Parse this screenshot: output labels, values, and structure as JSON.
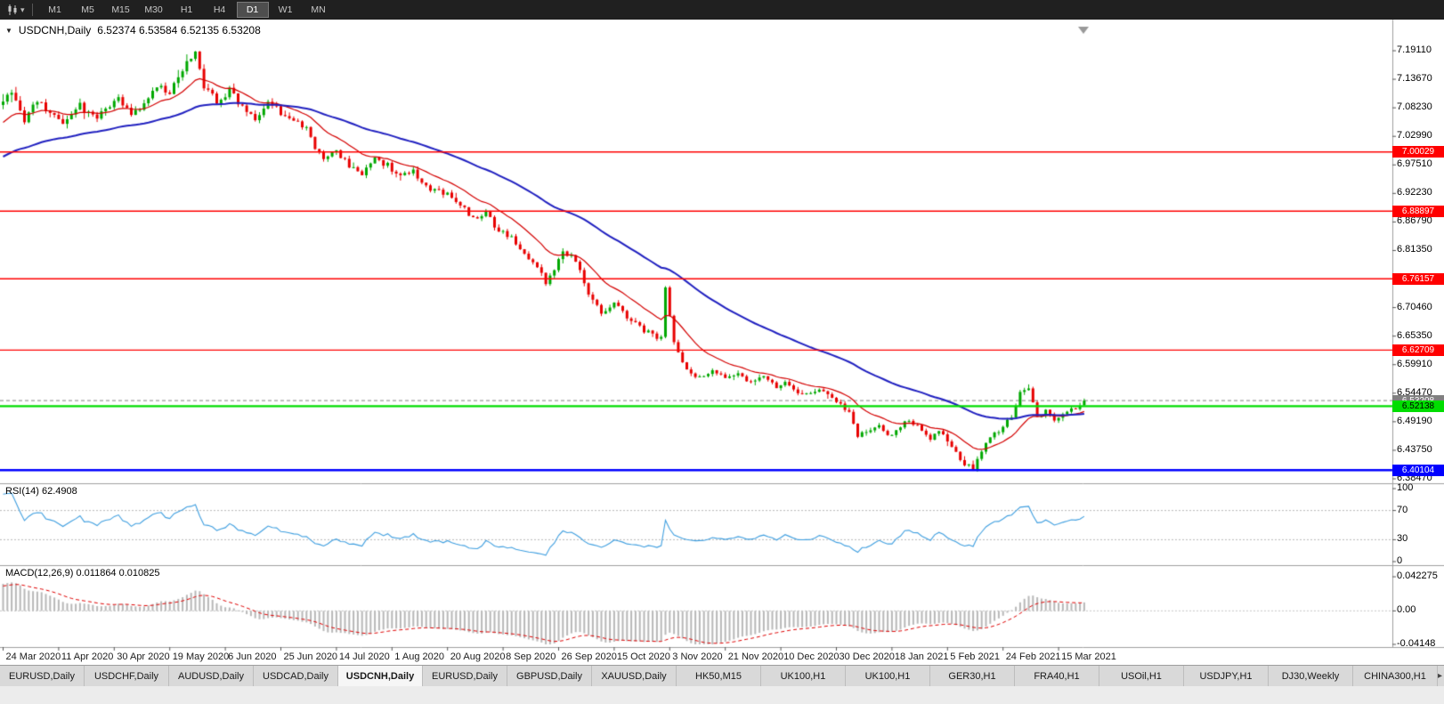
{
  "toolbar": {
    "caret": "▾",
    "timeframes": [
      "M1",
      "M5",
      "M15",
      "M30",
      "H1",
      "H4",
      "D1",
      "W1",
      "MN"
    ],
    "active_timeframe": "D1"
  },
  "chart": {
    "collapse_icon": "▼",
    "title_symbol": "USDCNH,Daily",
    "ohlc": {
      "open": "6.52374",
      "high": "6.53584",
      "low": "6.52135",
      "close": "6.53208"
    },
    "ohlc_text": "6.52374 6.53584 6.52135 6.53208",
    "price_scale_labels": [
      "7.19110",
      "7.13670",
      "7.08230",
      "7.02990",
      "6.97510",
      "6.92230",
      "6.86790",
      "6.81350",
      "6.76010",
      "6.70460",
      "6.65350",
      "6.59910",
      "6.54470",
      "6.49190",
      "6.43750",
      "6.38470"
    ],
    "hlines": [
      {
        "price": 7.00029,
        "label": "7.00029",
        "color": "#ff0000",
        "label_fg": "#ffffff",
        "width": 1.4
      },
      {
        "price": 6.88897,
        "label": "6.88897",
        "color": "#ff0000",
        "label_fg": "#ffffff",
        "width": 1.4
      },
      {
        "price": 6.76157,
        "label": "6.76157",
        "color": "#ff0000",
        "label_fg": "#ffffff",
        "width": 1.4
      },
      {
        "price": 6.62709,
        "label": "6.62709",
        "color": "#ff0000",
        "label_fg": "#ffffff",
        "width": 1.4
      },
      {
        "price": 6.52138,
        "label": "6.52138",
        "color": "#00dd00",
        "label_fg": "#000000",
        "width": 2.2
      },
      {
        "price": 6.40104,
        "label": "6.40104",
        "color": "#0000ff",
        "label_fg": "#ffffff",
        "width": 2.6
      }
    ],
    "current_price_line": {
      "price": 6.53208,
      "label": "6.53208",
      "color": "#808080",
      "label_fg": "#ffffff",
      "width": 1
    },
    "date_labels": [
      "24 Mar 2020",
      "11 Apr 2020",
      "30 Apr 2020",
      "19 May 2020",
      "6 Jun 2020",
      "25 Jun 2020",
      "14 Jul 2020",
      "1 Aug 2020",
      "20 Aug 2020",
      "8 Sep 2020",
      "26 Sep 2020",
      "15 Oct 2020",
      "3 Nov 2020",
      "21 Nov 2020",
      "10 Dec 2020",
      "30 Dec 2020",
      "18 Jan 2021",
      "5 Feb 2021",
      "24 Feb 2021",
      "15 Mar 2021"
    ],
    "bars_per_date_label": 13
  },
  "rsi_panel": {
    "label": "RSI(14)",
    "value": "62.4908",
    "scale_labels": [
      "100",
      "70",
      "30",
      "0"
    ],
    "levels": [
      70,
      30
    ],
    "line_color": "#3f9fe0"
  },
  "macd_panel": {
    "label": "MACD(12,26,9)",
    "values": "0.011864 0.010825",
    "scale_labels": [
      "0.042275",
      "0.00",
      "-0.04148"
    ],
    "scale_max": 0.042275,
    "scale_min": -0.04148,
    "hist_color": "#b8b8b8",
    "signal_color": "#e00000"
  },
  "tabs": {
    "items": [
      "EURUSD,Daily",
      "USDCHF,Daily",
      "AUDUSD,Daily",
      "USDCAD,Daily",
      "USDCNH,Daily",
      "EURUSD,Daily",
      "GBPUSD,Daily",
      "XAUUSD,Daily",
      "HK50,M15",
      "UK100,H1",
      "UK100,H1",
      "GER30,H1",
      "FRA40,H1",
      "USOil,H1",
      "USDJPY,H1",
      "DJ30,Weekly",
      "CHINA300,H1"
    ],
    "active_index": 4,
    "scroll_icon": "▸"
  },
  "chart_data": {
    "type": "candlestick",
    "symbol": "USDCNH",
    "timeframe": "Daily",
    "price_range": {
      "top": 7.1911,
      "bottom": 6.3847
    },
    "visible_bars": 254,
    "prehistory_bars": 30,
    "noise_seed": 9,
    "last_candle": {
      "open": 6.52374,
      "high": 6.53584,
      "low": 6.52135,
      "close": 6.53208
    },
    "support_resistance": [
      7.00029,
      6.88897,
      6.76157,
      6.62709,
      6.52138,
      6.40104
    ],
    "moving_averages": [
      {
        "period": 15,
        "type": "ema",
        "color": "#d40000"
      },
      {
        "period": 55,
        "type": "ema",
        "color": "#2020c0"
      }
    ],
    "indicators": [
      {
        "name": "RSI",
        "period": 14,
        "current": 62.4908
      },
      {
        "name": "MACD",
        "fast": 12,
        "slow": 26,
        "signal": 9,
        "current_main": 0.011864,
        "current_signal": 0.010825
      }
    ],
    "candle_colors": {
      "up": "#00a800",
      "down": "#e80000"
    },
    "trend_anchors": [
      [
        -30,
        6.925
      ],
      [
        -24,
        6.952
      ],
      [
        -18,
        6.992
      ],
      [
        -12,
        7.03
      ],
      [
        -6,
        7.062
      ],
      [
        0,
        7.095
      ],
      [
        2,
        7.115
      ],
      [
        5,
        7.06
      ],
      [
        8,
        7.1
      ],
      [
        11,
        7.07
      ],
      [
        14,
        7.05
      ],
      [
        18,
        7.09
      ],
      [
        21,
        7.065
      ],
      [
        24,
        7.08
      ],
      [
        27,
        7.1
      ],
      [
        30,
        7.065
      ],
      [
        33,
        7.095
      ],
      [
        36,
        7.125
      ],
      [
        39,
        7.11
      ],
      [
        42,
        7.155
      ],
      [
        45,
        7.185
      ],
      [
        47,
        7.125
      ],
      [
        50,
        7.095
      ],
      [
        53,
        7.115
      ],
      [
        56,
        7.085
      ],
      [
        59,
        7.065
      ],
      [
        62,
        7.095
      ],
      [
        65,
        7.075
      ],
      [
        68,
        7.06
      ],
      [
        71,
        7.045
      ],
      [
        73,
        7.005
      ],
      [
        75,
        6.99
      ],
      [
        78,
        7.0
      ],
      [
        81,
        6.975
      ],
      [
        84,
        6.96
      ],
      [
        87,
        6.985
      ],
      [
        90,
        6.975
      ],
      [
        93,
        6.955
      ],
      [
        96,
        6.965
      ],
      [
        99,
        6.935
      ],
      [
        102,
        6.925
      ],
      [
        104,
        6.92
      ],
      [
        107,
        6.9
      ],
      [
        110,
        6.875
      ],
      [
        113,
        6.885
      ],
      [
        116,
        6.85
      ],
      [
        119,
        6.84
      ],
      [
        122,
        6.81
      ],
      [
        125,
        6.785
      ],
      [
        127,
        6.755
      ],
      [
        129,
        6.775
      ],
      [
        131,
        6.815
      ],
      [
        134,
        6.795
      ],
      [
        137,
        6.735
      ],
      [
        140,
        6.7
      ],
      [
        143,
        6.715
      ],
      [
        146,
        6.69
      ],
      [
        149,
        6.67
      ],
      [
        152,
        6.655
      ],
      [
        154,
        6.65
      ],
      [
        155,
        6.75
      ],
      [
        157,
        6.64
      ],
      [
        159,
        6.6
      ],
      [
        161,
        6.58
      ],
      [
        163,
        6.575
      ],
      [
        166,
        6.59
      ],
      [
        169,
        6.575
      ],
      [
        172,
        6.585
      ],
      [
        175,
        6.565
      ],
      [
        178,
        6.578
      ],
      [
        181,
        6.556
      ],
      [
        183,
        6.568
      ],
      [
        185,
        6.552
      ],
      [
        188,
        6.542
      ],
      [
        191,
        6.556
      ],
      [
        194,
        6.538
      ],
      [
        196,
        6.528
      ],
      [
        198,
        6.508
      ],
      [
        200,
        6.462
      ],
      [
        202,
        6.475
      ],
      [
        205,
        6.482
      ],
      [
        208,
        6.465
      ],
      [
        211,
        6.492
      ],
      [
        214,
        6.486
      ],
      [
        217,
        6.462
      ],
      [
        219,
        6.478
      ],
      [
        221,
        6.458
      ],
      [
        223,
        6.432
      ],
      [
        225,
        6.412
      ],
      [
        227,
        6.405
      ],
      [
        229,
        6.438
      ],
      [
        231,
        6.462
      ],
      [
        234,
        6.482
      ],
      [
        236,
        6.502
      ],
      [
        238,
        6.545
      ],
      [
        240,
        6.558
      ],
      [
        242,
        6.502
      ],
      [
        244,
        6.512
      ],
      [
        246,
        6.498
      ],
      [
        248,
        6.508
      ],
      [
        250,
        6.515
      ],
      [
        252,
        6.522
      ],
      [
        253,
        6.532
      ]
    ]
  }
}
